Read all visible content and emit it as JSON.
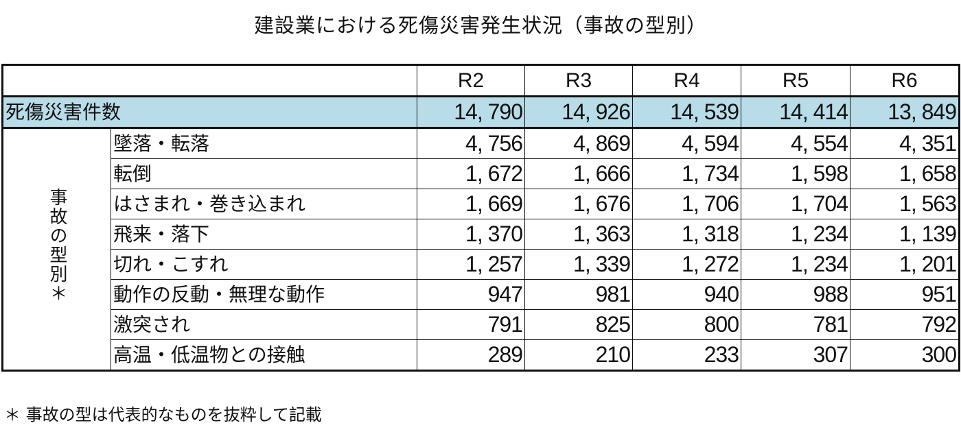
{
  "title": "建設業における死傷災害発生状況（事故の型別）",
  "table": {
    "years": [
      "R2",
      "R3",
      "R4",
      "R5",
      "R6"
    ],
    "total": {
      "label": "死傷災害件数",
      "values": [
        "14, 790",
        "14, 926",
        "14, 539",
        "14, 414",
        "13, 849"
      ]
    },
    "group_label": "事故の型別＊",
    "rows": [
      {
        "label": "墜落・転落",
        "values": [
          "4, 756",
          "4, 869",
          "4, 594",
          "4, 554",
          "4, 351"
        ]
      },
      {
        "label": "転倒",
        "values": [
          "1, 672",
          "1, 666",
          "1, 734",
          "1, 598",
          "1, 658"
        ]
      },
      {
        "label": "はさまれ・巻き込まれ",
        "values": [
          "1, 669",
          "1, 676",
          "1, 706",
          "1, 704",
          "1, 563"
        ]
      },
      {
        "label": "飛来・落下",
        "values": [
          "1, 370",
          "1, 363",
          "1, 318",
          "1, 234",
          "1, 139"
        ]
      },
      {
        "label": "切れ・こすれ",
        "values": [
          "1, 257",
          "1, 339",
          "1, 272",
          "1, 234",
          "1, 201"
        ]
      },
      {
        "label": "動作の反動・無理な動作",
        "values": [
          "947",
          "981",
          "940",
          "988",
          "951"
        ]
      },
      {
        "label": "激突され",
        "values": [
          "791",
          "825",
          "800",
          "781",
          "792"
        ]
      },
      {
        "label": "高温・低温物との接触",
        "values": [
          "289",
          "210",
          "233",
          "307",
          "300"
        ]
      }
    ],
    "total_row_color": "#b8dde8"
  },
  "footnote": "＊ 事故の型は代表的なものを抜粋して記載"
}
